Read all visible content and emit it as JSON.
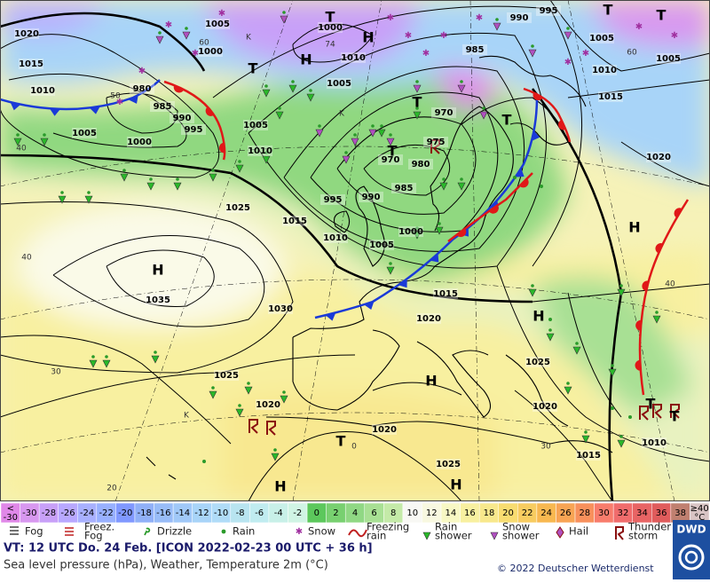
{
  "map": {
    "isobar_labels": [
      "1020",
      "1015",
      "1010",
      "1005",
      "1000",
      "995",
      "990",
      "985",
      "980",
      "1005",
      "1000",
      "1000",
      "1005",
      "1010",
      "1005",
      "1010",
      "1025",
      "1015",
      "1010",
      "1005",
      "1000",
      "995",
      "990",
      "985",
      "980",
      "975",
      "970",
      "970",
      "985",
      "990",
      "995",
      "1005",
      "1005",
      "1010",
      "1015",
      "1020",
      "1015",
      "1020",
      "1030",
      "1035",
      "1025",
      "1020",
      "1020",
      "1025",
      "1025",
      "1020",
      "1015",
      "1010"
    ],
    "centers": [
      "H",
      "H",
      "H",
      "T",
      "T",
      "T",
      "T",
      "H",
      "H",
      "H",
      "H",
      "H",
      "T",
      "T",
      "T",
      "T",
      "T",
      "T"
    ],
    "temperature_labels": [
      "40",
      "60",
      "50",
      "40",
      "30",
      "20",
      "60",
      "40",
      "30",
      "0",
      "74"
    ],
    "other_labels": [
      "K",
      "K",
      "K"
    ]
  },
  "legend": {
    "scale": [
      {
        "label": [
          "<",
          "-30"
        ],
        "color": "#e088e8"
      },
      {
        "label": [
          "-30"
        ],
        "color": "#d898f0"
      },
      {
        "label": [
          "-28"
        ],
        "color": "#c8a0f8"
      },
      {
        "label": [
          "-26"
        ],
        "color": "#b8a8ff"
      },
      {
        "label": [
          "-24"
        ],
        "color": "#a8b0ff"
      },
      {
        "label": [
          "-22"
        ],
        "color": "#98b0ff"
      },
      {
        "label": [
          "-20"
        ],
        "color": "#8098ff"
      },
      {
        "label": [
          "-18"
        ],
        "color": "#90b0f8"
      },
      {
        "label": [
          "-16"
        ],
        "color": "#98bcf8"
      },
      {
        "label": [
          "-14"
        ],
        "color": "#a0c8f8"
      },
      {
        "label": [
          "-12"
        ],
        "color": "#a8d4f8"
      },
      {
        "label": [
          "-10"
        ],
        "color": "#b0dcf8"
      },
      {
        "label": [
          "-8"
        ],
        "color": "#b8e4f0"
      },
      {
        "label": [
          "-6"
        ],
        "color": "#c0ecf0"
      },
      {
        "label": [
          "-4"
        ],
        "color": "#c8f0e8"
      },
      {
        "label": [
          "-2"
        ],
        "color": "#d0f4e4"
      },
      {
        "label": [
          "0"
        ],
        "color": "#5cc85c"
      },
      {
        "label": [
          "2"
        ],
        "color": "#78d070"
      },
      {
        "label": [
          "4"
        ],
        "color": "#90d884"
      },
      {
        "label": [
          "6"
        ],
        "color": "#a8e094"
      },
      {
        "label": [
          "8"
        ],
        "color": "#c4eaa8"
      },
      {
        "label": [
          "10"
        ],
        "color": "#f8f8f4"
      },
      {
        "label": [
          "12"
        ],
        "color": "#f8f8e0"
      },
      {
        "label": [
          "14"
        ],
        "color": "#f8f8c4"
      },
      {
        "label": [
          "16"
        ],
        "color": "#f8f0a0"
      },
      {
        "label": [
          "18"
        ],
        "color": "#f8e88c"
      },
      {
        "label": [
          "20"
        ],
        "color": "#f8dc70"
      },
      {
        "label": [
          "22"
        ],
        "color": "#f8cc60"
      },
      {
        "label": [
          "24"
        ],
        "color": "#f8b850"
      },
      {
        "label": [
          "26"
        ],
        "color": "#f8a454"
      },
      {
        "label": [
          "28"
        ],
        "color": "#f8905c"
      },
      {
        "label": [
          "30"
        ],
        "color": "#f87c6c"
      },
      {
        "label": [
          "32"
        ],
        "color": "#f06c6c"
      },
      {
        "label": [
          "34"
        ],
        "color": "#e86464"
      },
      {
        "label": [
          "36"
        ],
        "color": "#e05c5c"
      },
      {
        "label": [
          "38"
        ],
        "color": "#c08070"
      },
      {
        "label": [
          "≥40",
          "°C"
        ],
        "color": "#d8c4c4"
      }
    ],
    "symbols": [
      {
        "label": [
          "Fog"
        ]
      },
      {
        "label": [
          "Freez.",
          "Fog"
        ]
      },
      {
        "label": [
          "Drizzle"
        ]
      },
      {
        "label": [
          "Rain"
        ]
      },
      {
        "label": [
          "Snow"
        ]
      },
      {
        "label": [
          "Freezing",
          "rain"
        ]
      },
      {
        "label": [
          "Rain",
          "shower"
        ]
      },
      {
        "label": [
          "Snow",
          "shower"
        ]
      },
      {
        "label": [
          "Hail"
        ]
      },
      {
        "label": [
          "Thunder",
          "storm"
        ]
      }
    ]
  },
  "footer": {
    "valid_time": "VT: 12 UTC Do.  24 Feb. [ICON 2022-02-23  00 UTC + 36 h]",
    "description": "Sea level pressure (hPa), Weather, Temperature 2m (°C)",
    "copyright": "© 2022 Deutscher Wetterdienst",
    "logo": "DWD"
  }
}
